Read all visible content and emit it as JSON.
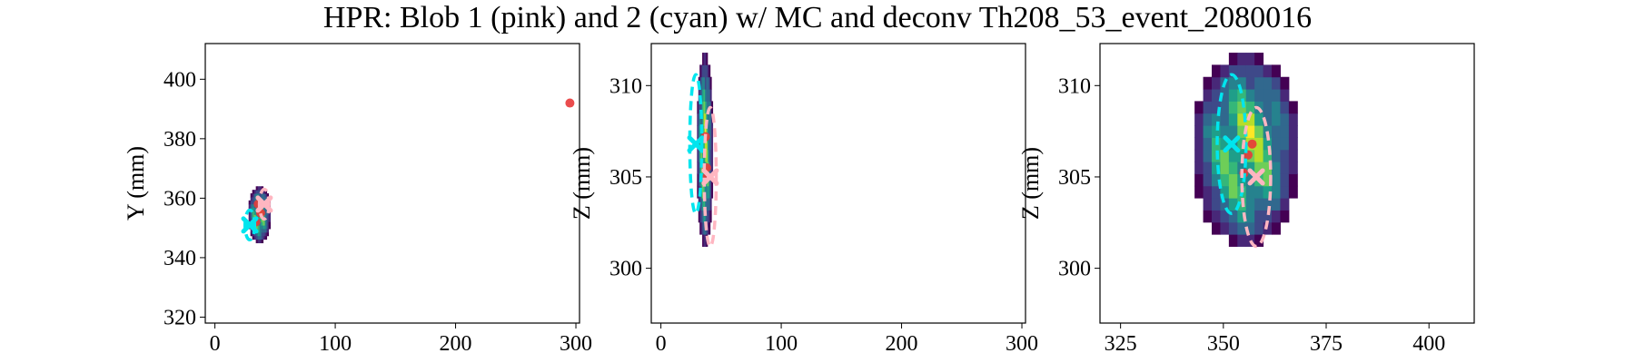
{
  "title": "HPR: Blob 1 (pink) and 2 (cyan) w/ MC and deconv Th208_53_event_2080016",
  "colors": {
    "blob1": "#ffb6c1",
    "blob2": "#00e5ee",
    "mc_points": "#e8393a",
    "deconv_low": "#440154",
    "deconv_mid": "#21908d",
    "deconv_high": "#fde725"
  },
  "chart_data": [
    {
      "type": "heatmap",
      "panel": "XY",
      "xlabel": "",
      "ylabel": "Y (mm)",
      "xlim": [
        -8,
        303
      ],
      "ylim": [
        318,
        412
      ],
      "xticks": [
        0,
        100,
        200,
        300
      ],
      "yticks": [
        320,
        340,
        360,
        380,
        400
      ],
      "mc_points": [
        [
          36,
          358
        ],
        [
          38,
          355
        ],
        [
          34,
          352
        ],
        [
          295,
          392
        ]
      ],
      "blob1": {
        "center": [
          41,
          358
        ],
        "ellipse": {
          "rx": 4,
          "ry": 5
        }
      },
      "blob2": {
        "center": [
          29,
          351
        ],
        "ellipse": {
          "rx": 4,
          "ry": 5
        }
      },
      "deconv_extent": {
        "x": [
          28,
          46
        ],
        "y": [
          345,
          364
        ]
      }
    },
    {
      "type": "heatmap",
      "panel": "XZ",
      "xlabel": "",
      "ylabel": "Z (mm)",
      "xlim": [
        -8,
        303
      ],
      "ylim": [
        297,
        312.3
      ],
      "xticks": [
        0,
        100,
        200,
        300
      ],
      "yticks": [
        300,
        305,
        310
      ],
      "mc_points": [
        [
          37,
          307.2
        ],
        [
          38,
          305.5
        ],
        [
          36,
          304.9
        ]
      ],
      "blob1": {
        "center": [
          41,
          305
        ],
        "ellipse": {
          "rx": 5,
          "ry": 3.8
        }
      },
      "blob2": {
        "center": [
          29,
          306.8
        ],
        "ellipse": {
          "rx": 5,
          "ry": 3.8
        }
      },
      "deconv_extent": {
        "x": [
          30,
          43
        ],
        "y": [
          301.2,
          311.8
        ]
      }
    },
    {
      "type": "heatmap",
      "panel": "YZ",
      "xlabel": "",
      "ylabel": "Z (mm)",
      "xlim": [
        320,
        411
      ],
      "ylim": [
        297,
        312.3
      ],
      "xticks": [
        325,
        350,
        375,
        400
      ],
      "yticks": [
        300,
        305,
        310
      ],
      "mc_points": [
        [
          356,
          306.2
        ],
        [
          355,
          305.2
        ],
        [
          357,
          306.8
        ]
      ],
      "blob1": {
        "center": [
          358,
          305
        ],
        "ellipse": {
          "rx": 3.5,
          "ry": 3.8
        }
      },
      "blob2": {
        "center": [
          352,
          306.8
        ],
        "ellipse": {
          "rx": 3.5,
          "ry": 3.8
        }
      },
      "deconv_extent": {
        "x": [
          343,
          368
        ],
        "y": [
          301.2,
          311.8
        ]
      }
    }
  ]
}
